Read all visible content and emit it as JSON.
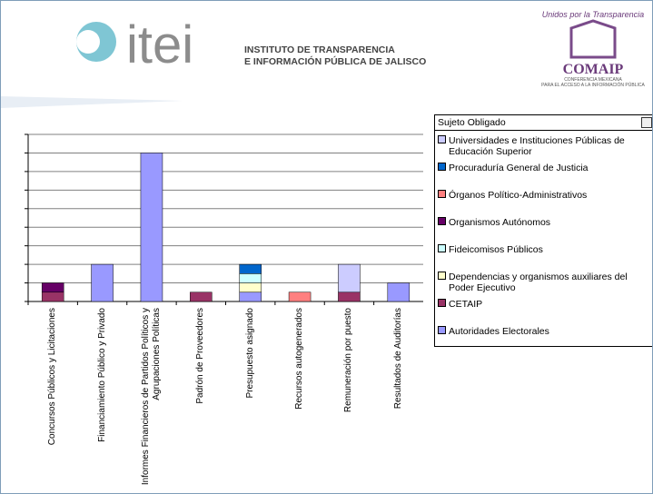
{
  "header": {
    "logo_text": "itei",
    "institute_line1": "INSTITUTO DE TRANSPARENCIA",
    "institute_line2": "E INFORMACIÓN PÚBLICA DE JALISCO",
    "partner_motto": "Unidos por la Transparencia",
    "partner_name": "COMAIP",
    "partner_sub1": "CONFERENCIA MEXICANA",
    "partner_sub2": "PARA EL ACCESO A LA INFORMACIÓN PÚBLICA"
  },
  "chart_data": {
    "type": "bar",
    "stacked": true,
    "legend_title": "Sujeto Obligado",
    "legend": "right",
    "grid": true,
    "categories": [
      "Concursos Públicos y Licitaciones",
      "Financiamiento Público y Privado",
      "Informes Financieros de Partidos Políticos y Agrupaciones Políticas",
      "Padrón de Proveedores",
      "Presupuesto asignado",
      "Recursos autogenerados",
      "Remuneración por puesto",
      "Resultados de Auditorías"
    ],
    "ylim": [
      0,
      18
    ],
    "yticks": [
      0,
      2,
      4,
      6,
      8,
      10,
      12,
      14,
      16,
      18
    ],
    "series": [
      {
        "name": "Universidades e Instituciones Públicas de Educación Superior",
        "color": "#ccccff",
        "values": [
          0,
          0,
          0,
          0,
          0,
          0,
          3,
          0
        ]
      },
      {
        "name": "Procuraduría General de Justicia",
        "color": "#0066cc",
        "values": [
          0,
          0,
          0,
          0,
          1,
          0,
          0,
          0
        ]
      },
      {
        "name": "Órganos Político-Administrativos",
        "color": "#ff8080",
        "values": [
          0,
          0,
          0,
          0,
          0,
          1,
          0,
          0
        ]
      },
      {
        "name": "Organismos Autónomos",
        "color": "#660066",
        "values": [
          1,
          0,
          0,
          0,
          0,
          0,
          0,
          0
        ]
      },
      {
        "name": "Fideicomisos Públicos",
        "color": "#ccffff",
        "values": [
          0,
          0,
          0,
          0,
          1,
          0,
          0,
          0
        ]
      },
      {
        "name": "Dependencias y organismos auxiliares del Poder Ejecutivo",
        "color": "#ffffcc",
        "values": [
          0,
          0,
          0,
          0,
          1,
          0,
          0,
          0
        ]
      },
      {
        "name": "CETAIP",
        "color": "#993366",
        "values": [
          1,
          0,
          0,
          1,
          0,
          0,
          1,
          0
        ]
      },
      {
        "name": "Autoridades Electorales",
        "color": "#9999ff",
        "values": [
          0,
          4,
          16,
          0,
          1,
          0,
          0,
          2
        ]
      }
    ]
  }
}
